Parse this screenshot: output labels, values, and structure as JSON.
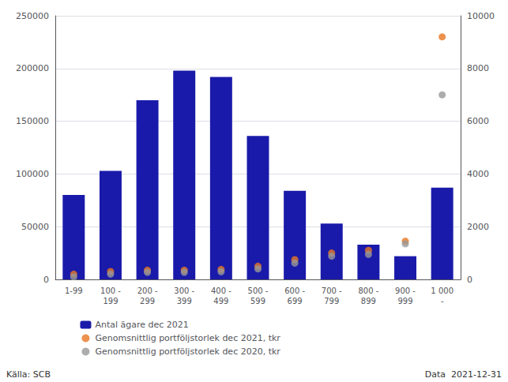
{
  "chart_data": {
    "type": "bar",
    "categories": [
      "1-99",
      "100 -\n199",
      "200 -\n299",
      "300 -\n399",
      "400 -\n499",
      "500 -\n599",
      "600 -\n699",
      "700 -\n799",
      "800 -\n899",
      "900 -\n999",
      "1 000\n-"
    ],
    "series": [
      {
        "name": "Antal ägare dec 2021",
        "type": "bar",
        "color": "#1a1aaa",
        "values": [
          80000,
          103000,
          170000,
          198000,
          192000,
          136000,
          84000,
          53000,
          33000,
          22000,
          87000
        ]
      },
      {
        "name": "Genomsnittlig portföljstorlek dec 2021, tkr",
        "type": "scatter",
        "axis": "y2",
        "color": "#E87722",
        "values": [
          200,
          300,
          350,
          350,
          380,
          500,
          750,
          1000,
          1100,
          1450,
          9200
        ]
      },
      {
        "name": "Genomsnittlig portföljstorlek dec 2020, tkr",
        "type": "scatter",
        "axis": "y2",
        "color": "#999999",
        "values": [
          100,
          200,
          270,
          270,
          290,
          400,
          620,
          880,
          950,
          1350,
          7000
        ]
      }
    ],
    "ylim": [
      0,
      250000
    ],
    "yticks": [
      0,
      50000,
      100000,
      150000,
      200000,
      250000
    ],
    "y2lim": [
      0,
      10000
    ],
    "y2ticks": [
      0,
      2000,
      4000,
      6000,
      8000,
      10000
    ],
    "grid": true,
    "legend": "bottom",
    "annotations": [
      "Källa: SCB",
      "Data  2021-12-31"
    ]
  }
}
